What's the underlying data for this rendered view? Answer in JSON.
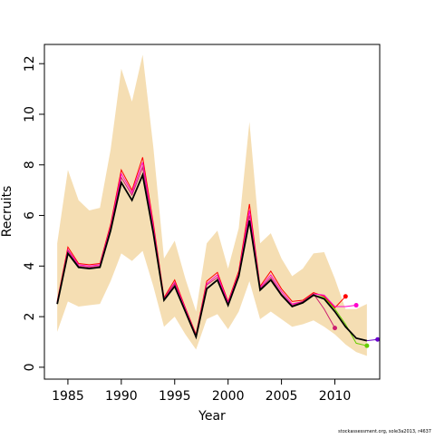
{
  "chart_data": {
    "type": "line",
    "xlabel": "Year",
    "ylabel": "Recruits",
    "footnote": "stockassessment.org, sole3a2013, r4637",
    "x": [
      1984,
      1985,
      1986,
      1987,
      1988,
      1989,
      1990,
      1991,
      1992,
      1993,
      1994,
      1995,
      1996,
      1997,
      1998,
      1999,
      2000,
      2001,
      2002,
      2003,
      2004,
      2005,
      2006,
      2007,
      2008,
      2009,
      2010,
      2011,
      2012,
      2013,
      2014
    ],
    "band_color": "#f5deb3",
    "band_upper": [
      4.9,
      7.8,
      6.6,
      6.2,
      6.3,
      8.6,
      11.8,
      10.5,
      12.35,
      8.7,
      4.3,
      5.0,
      3.5,
      2.2,
      4.9,
      5.4,
      3.9,
      5.5,
      9.7,
      4.9,
      5.3,
      4.3,
      3.6,
      3.9,
      4.5,
      4.55,
      3.5,
      2.3,
      2.3,
      2.5,
      null
    ],
    "band_lower": [
      1.4,
      2.6,
      2.4,
      2.45,
      2.5,
      3.4,
      4.5,
      4.2,
      4.6,
      3.2,
      1.6,
      2.0,
      1.3,
      0.7,
      1.9,
      2.1,
      1.5,
      2.2,
      3.4,
      1.9,
      2.2,
      1.9,
      1.6,
      1.7,
      1.85,
      1.6,
      1.3,
      0.9,
      0.6,
      0.45,
      null
    ],
    "series": [
      {
        "color": "#ff0000",
        "end_marker": true,
        "values": [
          2.6,
          4.75,
          4.1,
          4.05,
          4.1,
          5.65,
          7.8,
          7.0,
          8.3,
          5.7,
          2.75,
          3.45,
          2.35,
          1.3,
          3.4,
          3.75,
          2.6,
          3.8,
          6.45,
          3.2,
          3.8,
          3.1,
          2.6,
          2.65,
          2.95,
          2.8,
          2.35,
          2.8,
          null,
          null,
          null
        ]
      },
      {
        "color": "#ff00cc",
        "end_marker": true,
        "values": [
          2.55,
          4.65,
          4.05,
          4.0,
          4.05,
          5.55,
          7.65,
          6.9,
          8.1,
          5.55,
          2.7,
          3.35,
          2.3,
          1.25,
          3.3,
          3.65,
          2.55,
          3.7,
          6.2,
          3.15,
          3.65,
          3.0,
          2.5,
          2.6,
          2.9,
          2.85,
          2.4,
          2.4,
          2.45,
          null,
          null
        ]
      },
      {
        "color": "#cc1f6e",
        "end_marker": true,
        "values": [
          2.55,
          4.6,
          4.0,
          3.95,
          4.0,
          5.5,
          7.5,
          6.8,
          7.9,
          5.45,
          2.7,
          3.3,
          2.25,
          1.25,
          3.25,
          3.55,
          2.5,
          3.65,
          6.0,
          3.1,
          3.55,
          2.9,
          2.45,
          2.6,
          2.9,
          2.3,
          1.55,
          null,
          null,
          null,
          null
        ]
      },
      {
        "color": "#66cc00",
        "end_marker": true,
        "values": [
          2.5,
          4.5,
          3.95,
          3.9,
          3.95,
          5.4,
          7.3,
          6.6,
          7.6,
          5.3,
          2.65,
          3.2,
          2.2,
          1.2,
          3.1,
          3.45,
          2.45,
          3.6,
          5.8,
          3.05,
          3.45,
          2.85,
          2.4,
          2.55,
          2.85,
          2.75,
          2.3,
          1.7,
          0.95,
          0.85,
          null
        ]
      },
      {
        "color": "#000000",
        "end_marker": false,
        "values": [
          2.5,
          4.5,
          3.95,
          3.9,
          3.95,
          5.4,
          7.3,
          6.6,
          7.6,
          5.3,
          2.65,
          3.2,
          2.2,
          1.2,
          3.1,
          3.45,
          2.45,
          3.6,
          5.8,
          3.05,
          3.45,
          2.85,
          2.4,
          2.55,
          2.85,
          2.7,
          2.2,
          1.6,
          1.15,
          1.05,
          null
        ]
      },
      {
        "color": "#6a00cc",
        "end_marker": true,
        "values": [
          null,
          null,
          null,
          null,
          null,
          null,
          null,
          null,
          null,
          null,
          null,
          null,
          null,
          null,
          null,
          null,
          null,
          null,
          null,
          null,
          null,
          null,
          null,
          null,
          null,
          null,
          null,
          null,
          null,
          1.05,
          1.1
        ]
      }
    ],
    "xlim": [
      1982.8,
      2014.2
    ],
    "ylim": [
      -0.47,
      12.76
    ],
    "xticks": [
      1985,
      1990,
      1995,
      2000,
      2005,
      2010
    ],
    "yticks": [
      0,
      2,
      4,
      6,
      8,
      10,
      12
    ]
  }
}
